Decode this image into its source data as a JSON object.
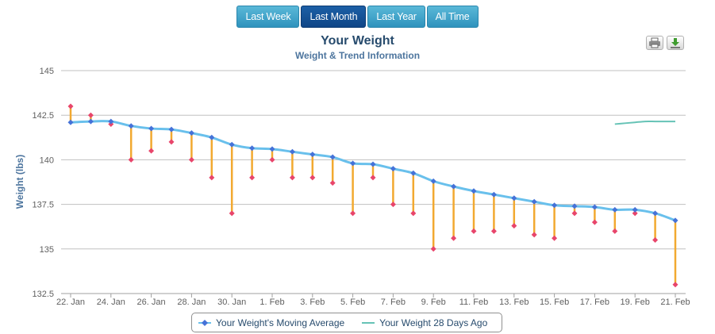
{
  "range_buttons": [
    {
      "label": "Last Week",
      "active": false
    },
    {
      "label": "Last Month",
      "active": true
    },
    {
      "label": "Last Year",
      "active": false
    },
    {
      "label": "All Time",
      "active": false
    }
  ],
  "export": {
    "print_icon": "printer-icon",
    "download_icon": "download-icon"
  },
  "colors": {
    "average_line": "#69c0ec",
    "average_marker": "#4572d8",
    "weight_marker": "#e8456b",
    "delta_bar": "#f2a930",
    "past_line": "#66c3b6",
    "grid": "#c0c0c0",
    "axis_text": "#606060",
    "title": "#274b6d"
  },
  "chart_data": {
    "type": "line",
    "title": "Your Weight",
    "subtitle": "Weight & Trend Information",
    "ylabel": "Weight (lbs)",
    "ylim": [
      132.5,
      145
    ],
    "yticks": [
      "132.5",
      "135",
      "137.5",
      "140",
      "142.5",
      "145"
    ],
    "xticks": [
      "22. Jan",
      "24. Jan",
      "26. Jan",
      "28. Jan",
      "30. Jan",
      "1. Feb",
      "3. Feb",
      "5. Feb",
      "7. Feb",
      "9. Feb",
      "11. Feb",
      "13. Feb",
      "15. Feb",
      "17. Feb",
      "19. Feb",
      "21. Feb"
    ],
    "x": [
      "22. Jan",
      "23. Jan",
      "24. Jan",
      "25. Jan",
      "26. Jan",
      "27. Jan",
      "28. Jan",
      "29. Jan",
      "30. Jan",
      "31. Jan",
      "1. Feb",
      "2. Feb",
      "3. Feb",
      "4. Feb",
      "5. Feb",
      "6. Feb",
      "7. Feb",
      "8. Feb",
      "9. Feb",
      "10. Feb",
      "11. Feb",
      "12. Feb",
      "13. Feb",
      "14. Feb",
      "15. Feb",
      "16. Feb",
      "17. Feb",
      "18. Feb",
      "19. Feb",
      "20. Feb",
      "21. Feb"
    ],
    "grid": true,
    "legend_position": "bottom-center",
    "series": [
      {
        "name": "Your Weight's Moving Average",
        "values": [
          142.1,
          142.15,
          142.15,
          141.9,
          141.75,
          141.7,
          141.5,
          141.25,
          140.85,
          140.65,
          140.6,
          140.45,
          140.3,
          140.15,
          139.8,
          139.75,
          139.5,
          139.25,
          138.8,
          138.5,
          138.25,
          138.05,
          137.85,
          137.65,
          137.45,
          137.4,
          137.35,
          137.2,
          137.2,
          137.0,
          136.6
        ]
      },
      {
        "name": "Your Weight",
        "values": [
          143.0,
          142.5,
          142.0,
          140.0,
          140.5,
          141.0,
          140.0,
          139.0,
          137.0,
          139.0,
          140.0,
          139.0,
          139.0,
          138.7,
          137.0,
          139.0,
          137.5,
          137.0,
          135.0,
          135.6,
          136.0,
          136.0,
          136.3,
          135.8,
          135.6,
          137.0,
          136.5,
          136.0,
          137.0,
          135.5,
          133.0
        ]
      },
      {
        "name": "Your Weight 28 Days Ago",
        "x": [
          "18. Feb",
          "18.5. Feb",
          "19. Feb",
          "19.5. Feb",
          "20. Feb",
          "20.5. Feb",
          "21. Feb"
        ],
        "values": [
          142.0,
          142.05,
          142.1,
          142.15,
          142.15,
          142.15,
          142.15
        ]
      }
    ]
  }
}
